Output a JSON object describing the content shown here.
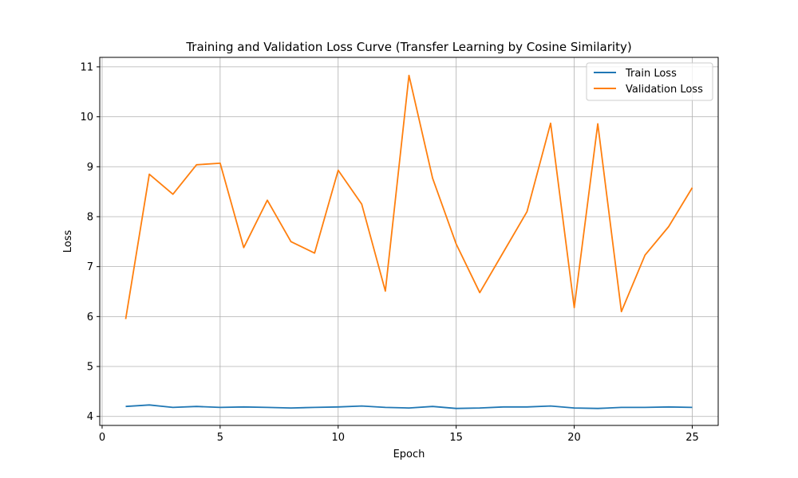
{
  "chart_data": {
    "type": "line",
    "title": "Training and Validation Loss Curve (Transfer Learning by Cosine Similarity)",
    "xlabel": "Epoch",
    "ylabel": "Loss",
    "xlim": [
      -0.1,
      26.1
    ],
    "ylim": [
      3.82,
      11.19
    ],
    "x_ticks": [
      0,
      5,
      10,
      15,
      20,
      25
    ],
    "y_ticks": [
      4,
      5,
      6,
      7,
      8,
      9,
      10,
      11
    ],
    "grid": true,
    "legend_position": "top-right",
    "x": [
      1,
      2,
      3,
      4,
      5,
      6,
      7,
      8,
      9,
      10,
      11,
      12,
      13,
      14,
      15,
      16,
      17,
      18,
      19,
      20,
      21,
      22,
      23,
      24,
      25
    ],
    "series": [
      {
        "name": "Train Loss",
        "color": "#1f77b4",
        "values": [
          4.2,
          4.23,
          4.18,
          4.2,
          4.18,
          4.19,
          4.18,
          4.17,
          4.18,
          4.19,
          4.21,
          4.18,
          4.17,
          4.2,
          4.16,
          4.17,
          4.19,
          4.19,
          4.21,
          4.17,
          4.16,
          4.18,
          4.18,
          4.19,
          4.18
        ]
      },
      {
        "name": "Validation Loss",
        "color": "#ff7f0e",
        "values": [
          5.95,
          8.85,
          8.45,
          9.04,
          9.07,
          7.38,
          8.33,
          7.5,
          7.27,
          8.93,
          8.25,
          6.51,
          10.83,
          8.77,
          7.45,
          6.48,
          7.29,
          8.1,
          9.87,
          6.18,
          9.86,
          6.1,
          7.23,
          7.8,
          8.58
        ]
      }
    ]
  }
}
